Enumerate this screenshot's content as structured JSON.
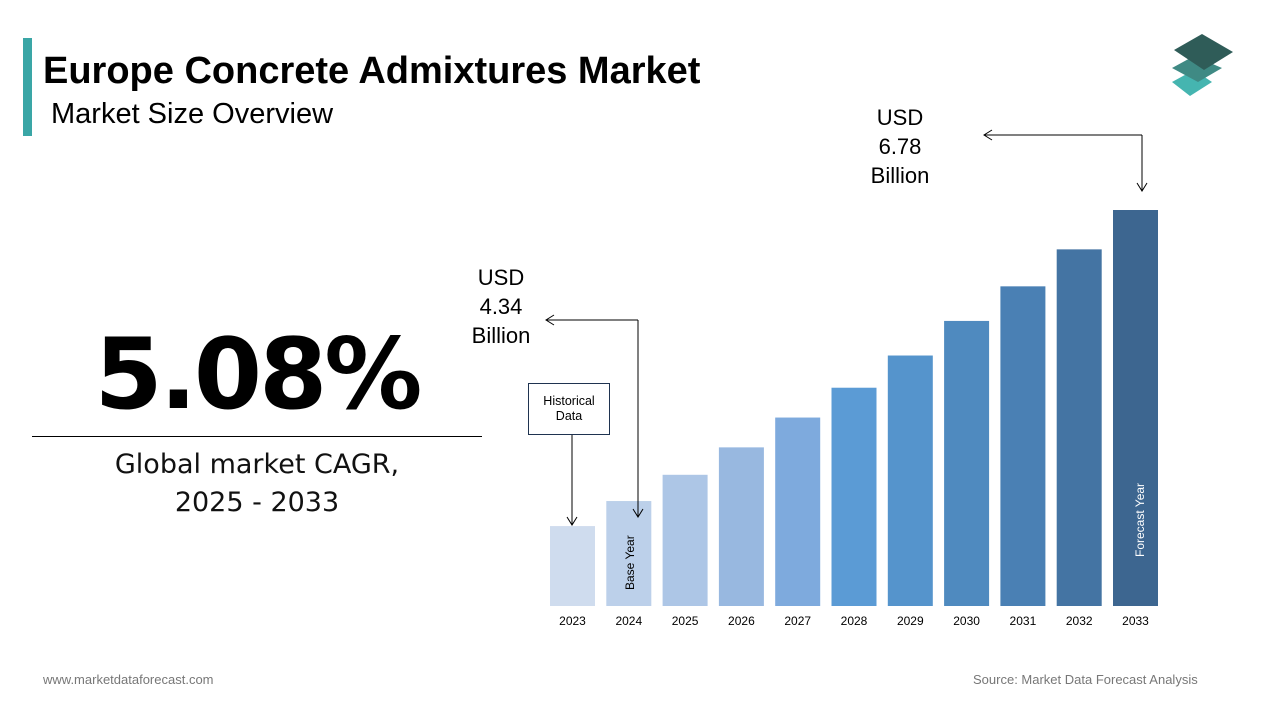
{
  "header": {
    "title": "Europe Concrete Admixtures Market",
    "subtitle": "Market Size Overview"
  },
  "kpi": {
    "value": "5.08%",
    "label_line1": "Global market CAGR,",
    "label_line2": "2025 - 2033"
  },
  "footer": {
    "website": "www.marketdataforecast.com",
    "source": "Source: Market Data Forecast Analysis"
  },
  "logo": {
    "icon": "stacked-layers-icon",
    "colors": [
      "#2f5c58",
      "#3f8a84",
      "#45b5b0"
    ]
  },
  "chart_data": {
    "type": "bar",
    "categories": [
      "2023",
      "2024",
      "2025",
      "2026",
      "2027",
      "2028",
      "2029",
      "2030",
      "2031",
      "2032",
      "2033"
    ],
    "values": [
      4.13,
      4.34,
      4.56,
      4.79,
      5.04,
      5.29,
      5.56,
      5.85,
      6.14,
      6.45,
      6.78
    ],
    "colors": [
      "#cfdcee",
      "#bcd0ea",
      "#adc6e6",
      "#98b8e0",
      "#7eaadd",
      "#5b9bd5",
      "#5594cc",
      "#4f8abf",
      "#4a80b4",
      "#4474a3",
      "#3d6690"
    ],
    "annotations": {
      "start": {
        "line1": "USD",
        "line2": "4.34",
        "line3": "Billion"
      },
      "end": {
        "line1": "USD",
        "line2": "6.78",
        "line3": "Billion"
      },
      "historical": {
        "line1": "Historical",
        "line2": "Data"
      },
      "base_year": "Base Year",
      "forecast_year": "Forecast Year"
    },
    "grid": false
  }
}
